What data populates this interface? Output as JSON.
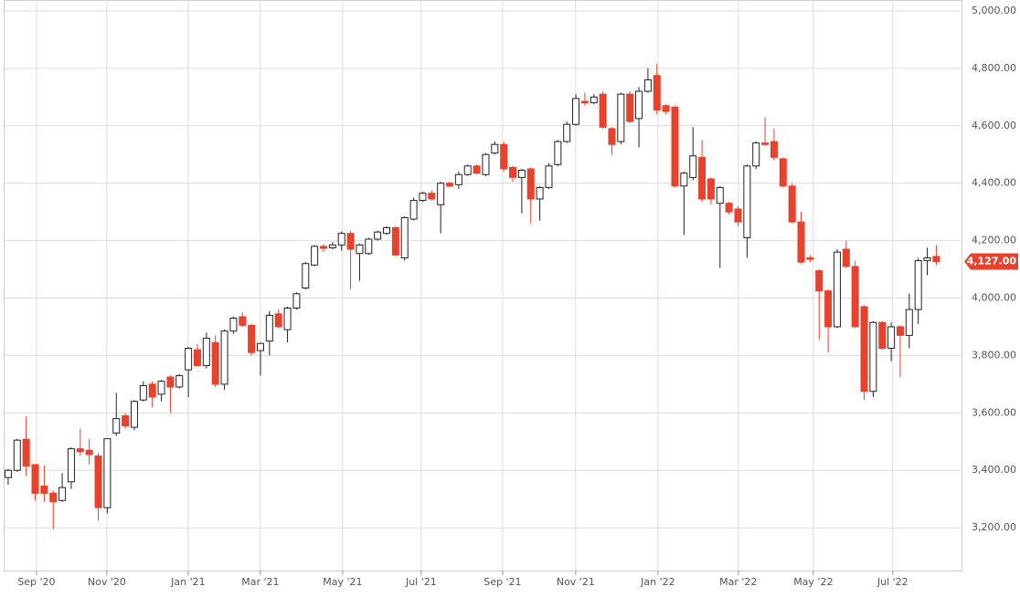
{
  "chart_data": {
    "type": "candlestick",
    "open": [
      3375,
      3400,
      3508,
      3420,
      3345,
      3320,
      3295,
      3360,
      3475,
      3470,
      3450,
      3270,
      3530,
      3590,
      3550,
      3645,
      3700,
      3665,
      3725,
      3690,
      3750,
      3820,
      3765,
      3845,
      3700,
      3885,
      3935,
      3905,
      3817,
      3850,
      3945,
      3890,
      3965,
      4035,
      4115,
      4180,
      4175,
      4185,
      4225,
      4155,
      4155,
      4205,
      4225,
      4245,
      4140,
      4275,
      4340,
      4365,
      4325,
      4400,
      4395,
      4430,
      4460,
      4430,
      4505,
      4535,
      4455,
      4420,
      4450,
      4345,
      4385,
      4465,
      4545,
      4605,
      4685,
      4680,
      4710,
      4590,
      4545,
      4710,
      4625,
      4720,
      4775,
      4670,
      4665,
      4390,
      4420,
      4490,
      4415,
      4330,
      4330,
      4310,
      4210,
      4460,
      4540,
      4545,
      4485,
      4390,
      4265,
      4140,
      4095,
      4025,
      3900,
      4170,
      4110,
      3970,
      3675,
      3915,
      3825,
      3900,
      3870,
      3960,
      4130,
      4145
    ],
    "high": [
      3405,
      3510,
      3588,
      3420,
      3417,
      3330,
      3390,
      3480,
      3545,
      3510,
      3460,
      3510,
      3670,
      3600,
      3645,
      3710,
      3710,
      3715,
      3730,
      3735,
      3830,
      3840,
      3880,
      3870,
      3890,
      3935,
      3950,
      3910,
      3845,
      3955,
      3960,
      3970,
      4020,
      4125,
      4185,
      4188,
      4195,
      4232,
      4235,
      4190,
      4210,
      4235,
      4250,
      4250,
      4285,
      4350,
      4370,
      4375,
      4405,
      4405,
      4440,
      4465,
      4465,
      4505,
      4545,
      4545,
      4460,
      4450,
      4455,
      4390,
      4470,
      4550,
      4615,
      4710,
      4715,
      4710,
      4720,
      4595,
      4715,
      4720,
      4735,
      4800,
      4815,
      4675,
      4670,
      4440,
      4595,
      4550,
      4420,
      4390,
      4335,
      4320,
      4465,
      4545,
      4630,
      4590,
      4490,
      4400,
      4300,
      4150,
      4100,
      4030,
      4170,
      4200,
      4130,
      3975,
      3920,
      3920,
      3915,
      3905,
      4015,
      4140,
      4175,
      4185
    ],
    "low": [
      3350,
      3395,
      3380,
      3295,
      3290,
      3195,
      3290,
      3335,
      3450,
      3420,
      3225,
      3250,
      3520,
      3545,
      3540,
      3640,
      3620,
      3640,
      3600,
      3685,
      3655,
      3760,
      3755,
      3690,
      3680,
      3875,
      3900,
      3800,
      3730,
      3800,
      3895,
      3845,
      3960,
      4030,
      4110,
      4160,
      4170,
      4165,
      4030,
      4060,
      4150,
      4200,
      4220,
      4145,
      4130,
      4270,
      4335,
      4340,
      4225,
      4385,
      4380,
      4425,
      4430,
      4425,
      4500,
      4440,
      4405,
      4295,
      4260,
      4270,
      4380,
      4460,
      4540,
      4600,
      4670,
      4675,
      4590,
      4500,
      4535,
      4610,
      4525,
      4715,
      4640,
      4640,
      4385,
      4220,
      4410,
      4335,
      4325,
      4105,
      4290,
      4250,
      4140,
      4450,
      4530,
      4480,
      4385,
      4260,
      4120,
      4125,
      3855,
      3810,
      3895,
      4105,
      3895,
      3645,
      3655,
      3820,
      3780,
      3725,
      3825,
      3910,
      4080,
      4115
    ],
    "close": [
      3400,
      3505,
      3415,
      3320,
      3320,
      3290,
      3340,
      3475,
      3465,
      3455,
      3270,
      3510,
      3580,
      3555,
      3640,
      3695,
      3655,
      3710,
      3690,
      3730,
      3825,
      3765,
      3860,
      3700,
      3885,
      3930,
      3905,
      3810,
      3842,
      3940,
      3900,
      3965,
      4015,
      4120,
      4180,
      4173,
      4185,
      4225,
      4170,
      4185,
      4205,
      4230,
      4245,
      4150,
      4280,
      4340,
      4365,
      4345,
      4400,
      4390,
      4430,
      4460,
      4435,
      4500,
      4535,
      4450,
      4420,
      4445,
      4345,
      4385,
      4460,
      4545,
      4605,
      4695,
      4680,
      4700,
      4595,
      4535,
      4710,
      4615,
      4720,
      4760,
      4655,
      4650,
      4390,
      4435,
      4495,
      4345,
      4345,
      4385,
      4300,
      4265,
      4460,
      4540,
      4535,
      4490,
      4390,
      4265,
      4125,
      4135,
      4025,
      3900,
      4160,
      4110,
      3900,
      3675,
      3915,
      3825,
      3900,
      3870,
      3960,
      4130,
      4140,
      4127
    ],
    "up_color": "#ffffff",
    "down_color": "#e8412c",
    "last_value": 4127,
    "last_label": "4,127.00",
    "xlim": [
      -0.4,
      105.8
    ],
    "xticks": [
      {
        "value": 3.14,
        "label": "Sep '20"
      },
      {
        "value": 10.95,
        "label": "Nov '20"
      },
      {
        "value": 19.98,
        "label": "Jan '21"
      },
      {
        "value": 27.99,
        "label": "Mar '21"
      },
      {
        "value": 37.12,
        "label": "May '21"
      },
      {
        "value": 45.84,
        "label": "Jul '21"
      },
      {
        "value": 54.87,
        "label": "Sep '21"
      },
      {
        "value": 62.98,
        "label": "Nov '21"
      },
      {
        "value": 72.11,
        "label": "Jan '22"
      },
      {
        "value": 81.03,
        "label": "Mar '22"
      },
      {
        "value": 89.35,
        "label": "May '22"
      },
      {
        "value": 98.17,
        "label": "Jul '22"
      }
    ],
    "ylim": [
      3051,
      5038
    ],
    "yticks": [
      {
        "value": 3200,
        "label": "3,200.00"
      },
      {
        "value": 3400,
        "label": "3,400.00"
      },
      {
        "value": 3600,
        "label": "3,600.00"
      },
      {
        "value": 3800,
        "label": "3,800.00"
      },
      {
        "value": 4000,
        "label": "4,000.00"
      },
      {
        "value": 4200,
        "label": "4,200.00"
      },
      {
        "value": 4400,
        "label": "4,400.00"
      },
      {
        "value": 4600,
        "label": "4,600.00"
      },
      {
        "value": 4800,
        "label": "4,800.00"
      },
      {
        "value": 5000,
        "label": "5,000.00"
      }
    ],
    "grid": true
  }
}
